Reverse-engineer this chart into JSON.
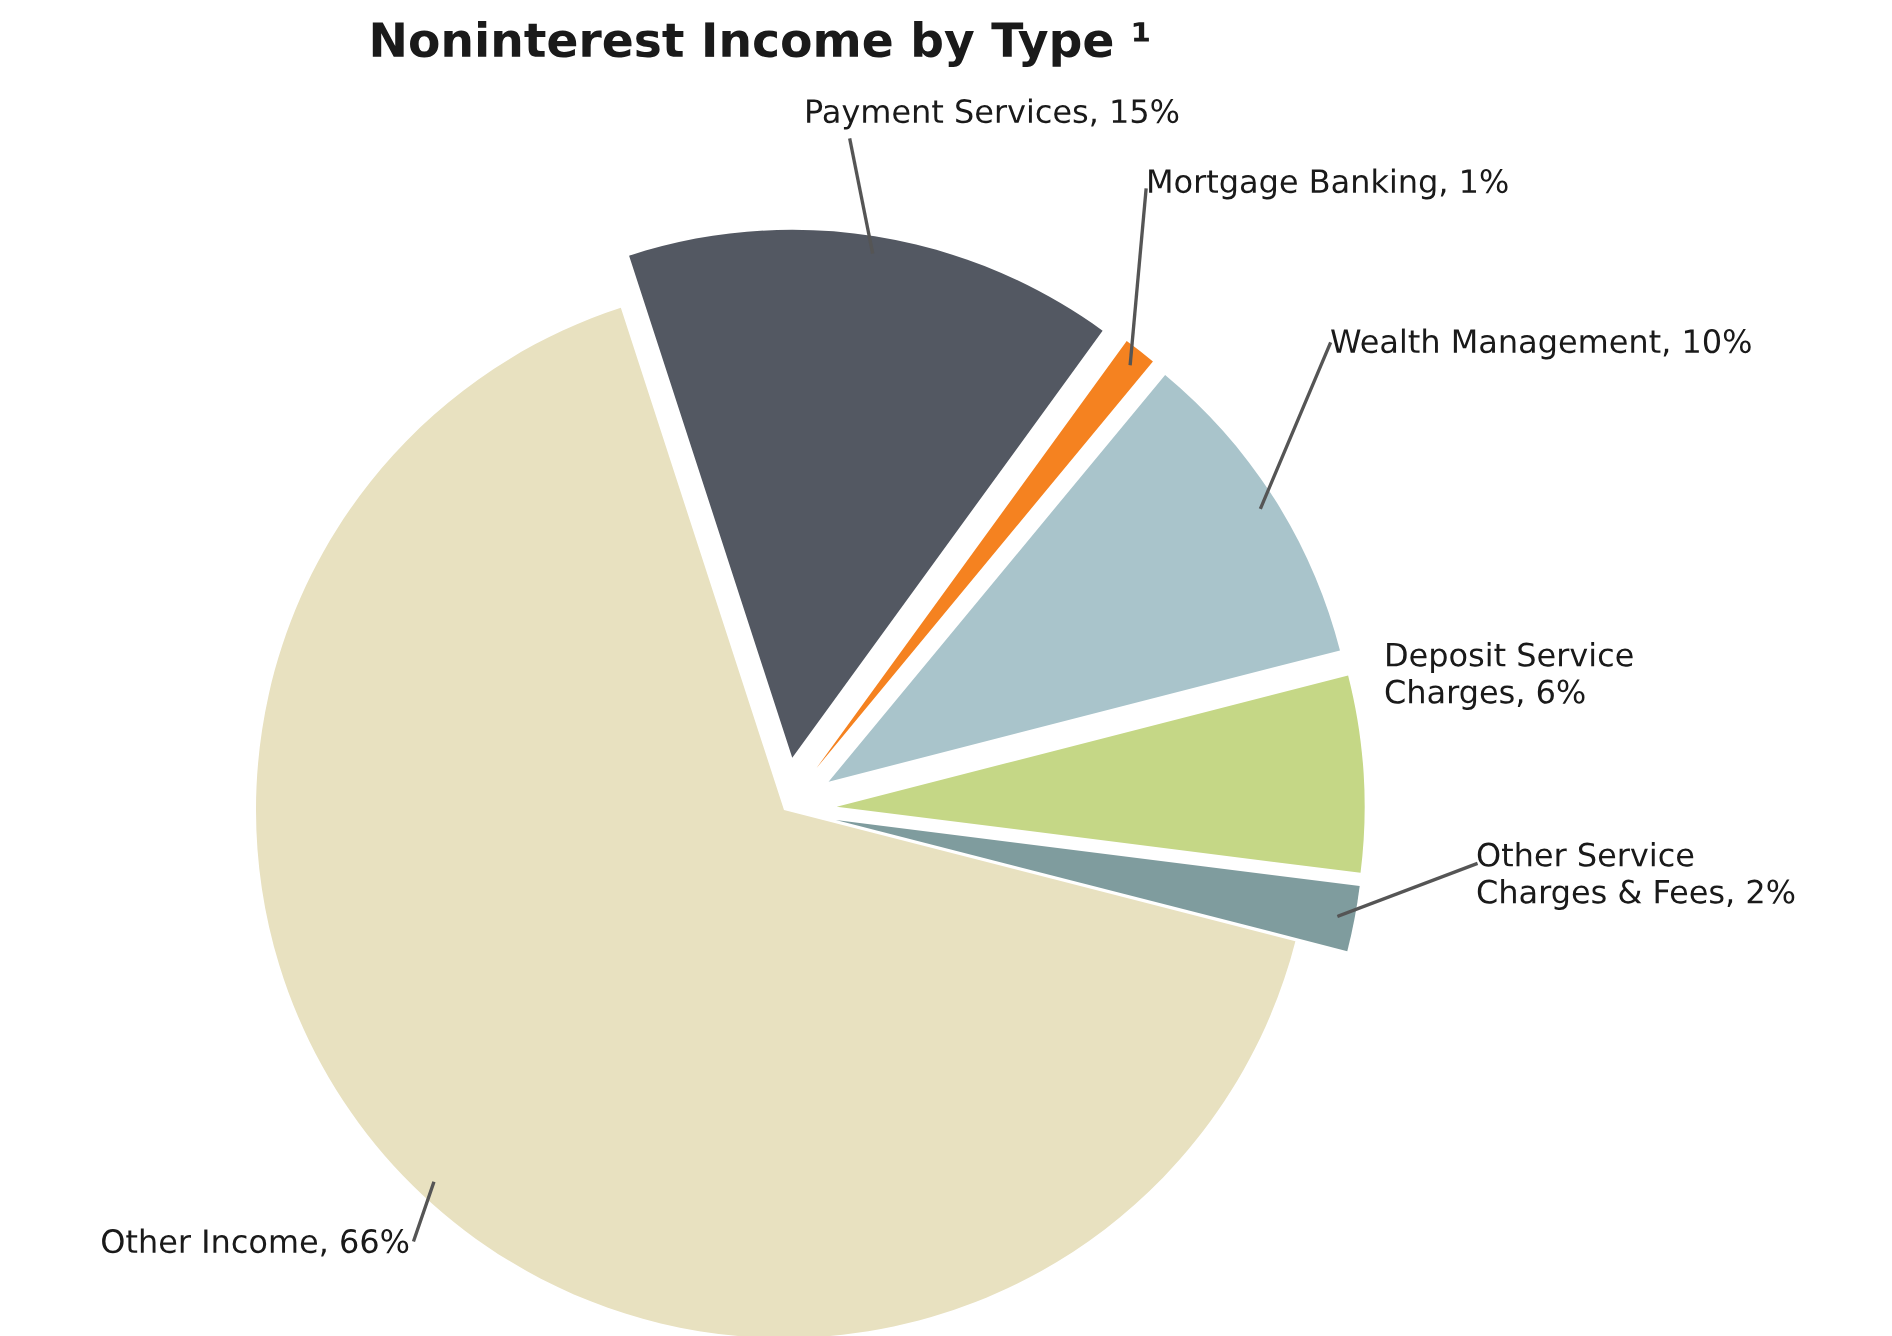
{
  "chart_data": {
    "type": "pie",
    "title": "Noninterest Income by Type ¹",
    "categories": [
      "Payment Services",
      "Mortgage Banking",
      "Wealth Management",
      "Deposit Service Charges",
      "Other Service Charges & Fees",
      "Other Income"
    ],
    "values": [
      15,
      1,
      10,
      6,
      2,
      66
    ],
    "value_labels": [
      "15%",
      "1%",
      "10%",
      "6%",
      "2%",
      "66%"
    ],
    "colors": [
      "#535862",
      "#f58220",
      "#a9c4cb",
      "#c5d786",
      "#7f9c9e",
      "#e8e1c0"
    ],
    "legend": false
  }
}
